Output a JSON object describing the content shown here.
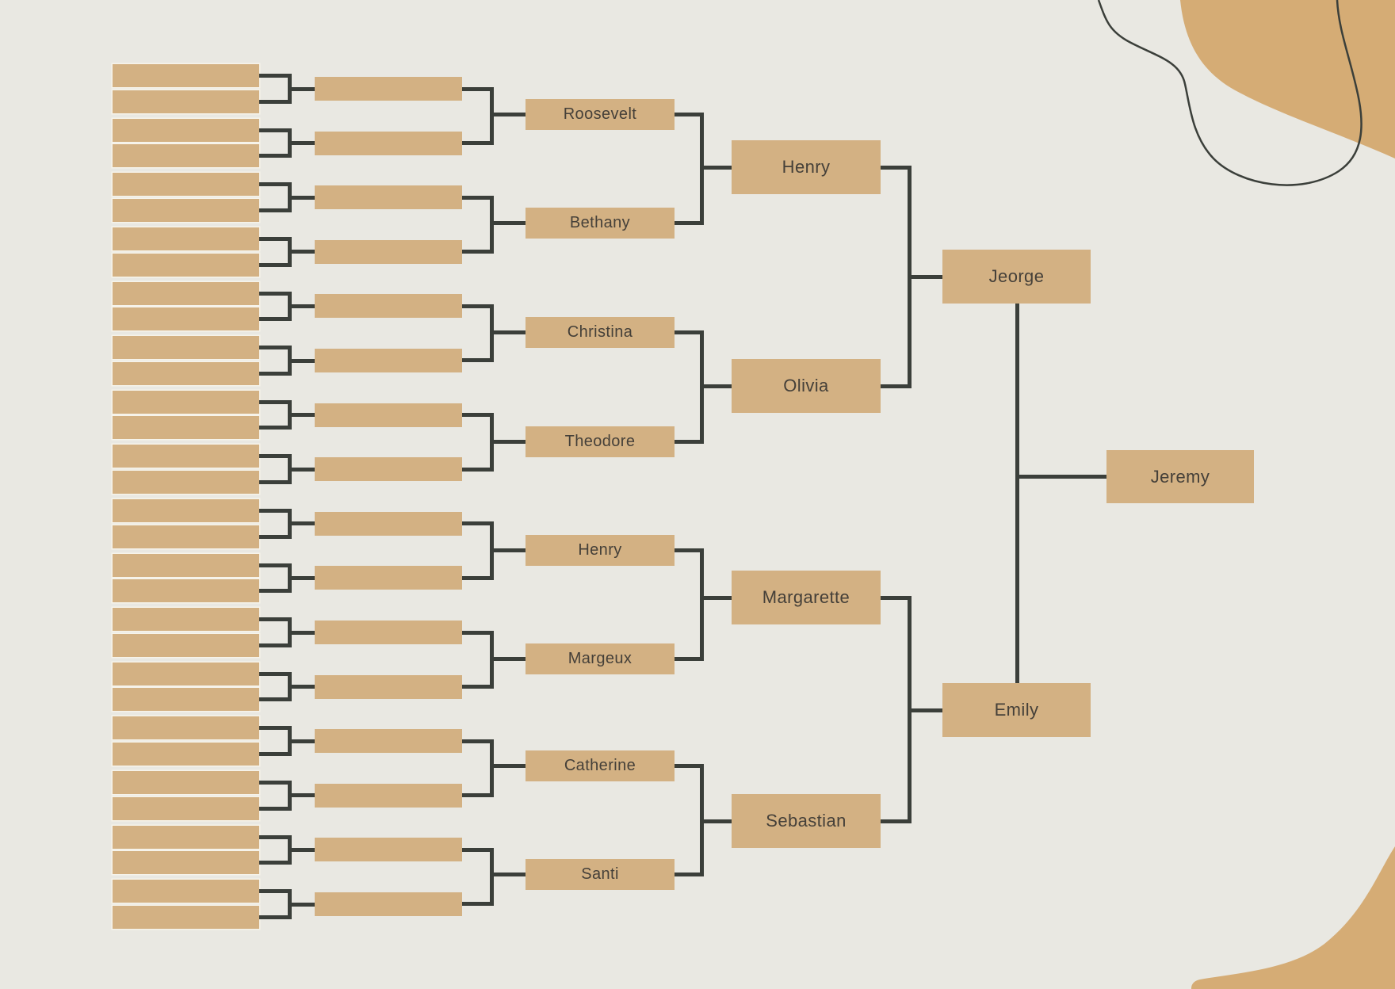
{
  "palette": {
    "background": "#e9e8e2",
    "node_fill": "#d3b183",
    "blob_fill": "#d5ac75",
    "line": "#3b3f3a",
    "text": "#454039"
  },
  "tree": {
    "child": {
      "name": "Jeremy"
    },
    "parents": [
      {
        "name": "Jeorge"
      },
      {
        "name": "Emily"
      }
    ],
    "grandparents": [
      {
        "name": "Henry"
      },
      {
        "name": "Olivia"
      },
      {
        "name": "Margarette"
      },
      {
        "name": "Sebastian"
      }
    ],
    "great_grandparents": [
      {
        "name": "Roosevelt"
      },
      {
        "name": "Bethany"
      },
      {
        "name": "Christina"
      },
      {
        "name": "Theodore"
      },
      {
        "name": "Henry"
      },
      {
        "name": "Margeux"
      },
      {
        "name": "Catherine"
      },
      {
        "name": "Santi"
      }
    ],
    "unnamed_generation_counts": {
      "gen5_bars": 16,
      "gen6_bars": 32
    }
  },
  "decor": {
    "top_right": "organic-blob-with-outline-squiggle",
    "bottom_right": "organic-blob"
  }
}
